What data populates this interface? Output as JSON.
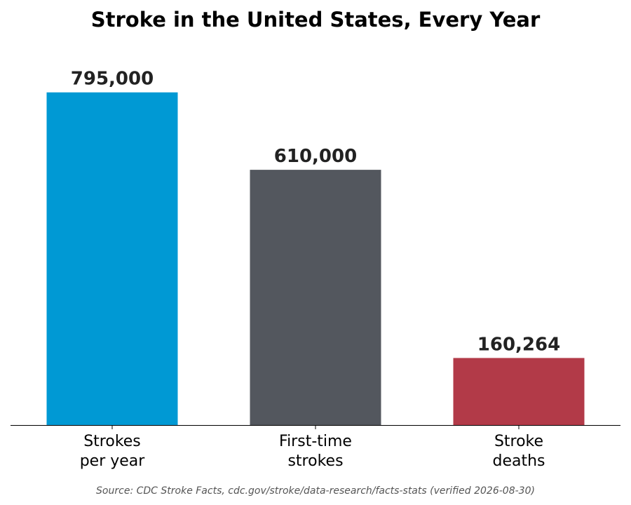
{
  "chart_data": {
    "type": "bar",
    "title": "Stroke in the United States, Every Year",
    "categories": [
      "Strokes\nper year",
      "First-time\nstrokes",
      "Stroke\ndeaths"
    ],
    "values": [
      795000,
      610000,
      160264
    ],
    "value_labels": [
      "795,000",
      "610,000",
      "160,264"
    ],
    "colors": [
      "#0099d4",
      "#53575e",
      "#b23a48"
    ],
    "ylim": [
      0,
      880000
    ],
    "grid": false,
    "xlabel": "",
    "ylabel": ""
  },
  "source": "Source: CDC Stroke Facts, cdc.gov/stroke/data-research/facts-stats (verified 2026-08-30)"
}
